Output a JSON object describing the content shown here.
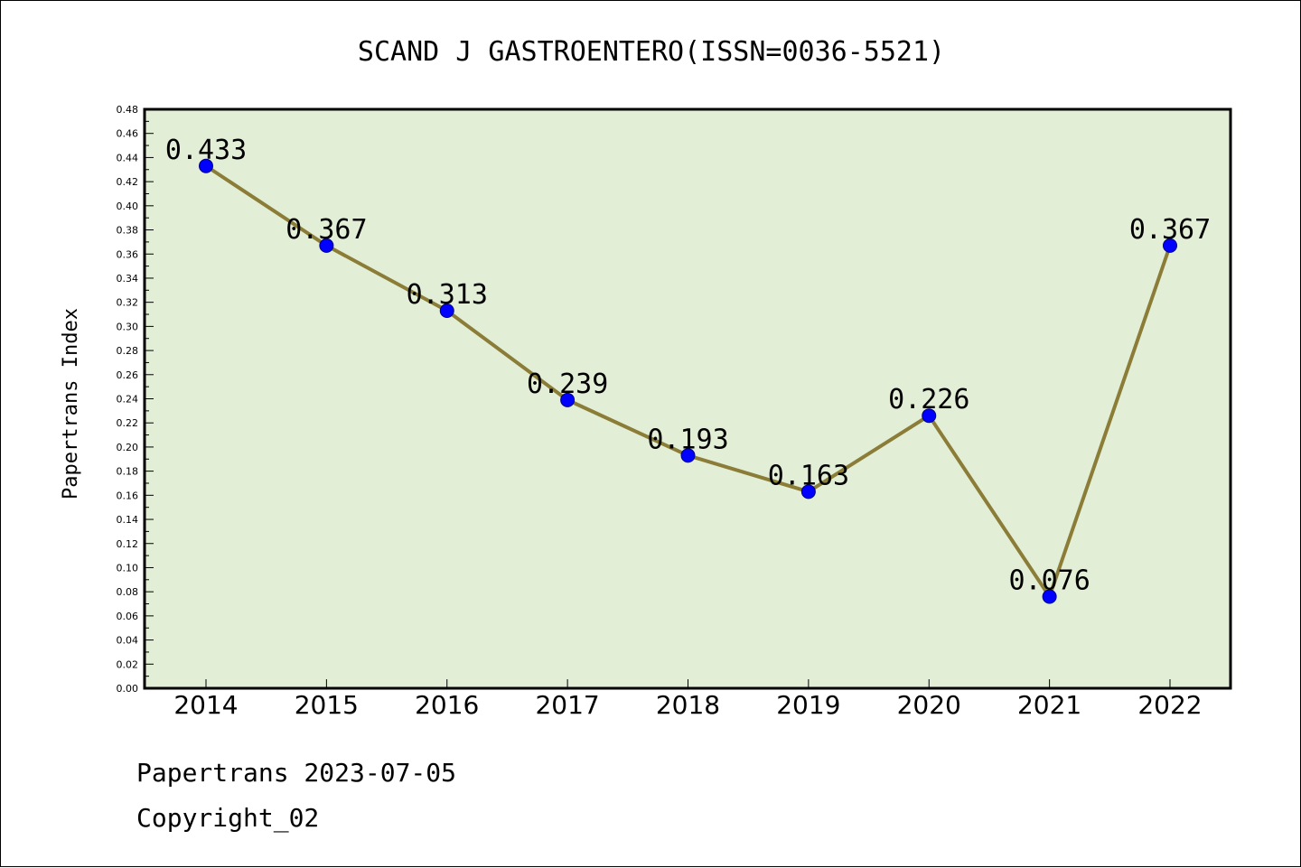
{
  "chart_data": {
    "type": "line",
    "title": "SCAND J GASTROENTERO(ISSN=0036-5521)",
    "ylabel": "Papertrans Index",
    "xlabel": "",
    "categories": [
      "2014",
      "2015",
      "2016",
      "2017",
      "2018",
      "2019",
      "2020",
      "2021",
      "2022"
    ],
    "values": [
      0.433,
      0.367,
      0.313,
      0.239,
      0.193,
      0.163,
      0.226,
      0.076,
      0.367
    ],
    "data_labels": [
      "0.433",
      "0.367",
      "0.313",
      "0.239",
      "0.193",
      "0.163",
      "0.226",
      "0.076",
      "0.367"
    ],
    "ylim": [
      0,
      0.48
    ],
    "yticks": [
      "0.00",
      "0.02",
      "0.04",
      "0.06",
      "0.08",
      "0.10",
      "0.12",
      "0.14",
      "0.16",
      "0.18",
      "0.20",
      "0.22",
      "0.24",
      "0.26",
      "0.28",
      "0.30",
      "0.32",
      "0.34",
      "0.36",
      "0.38",
      "0.40",
      "0.42",
      "0.44",
      "0.46",
      "0.48"
    ],
    "grid": false,
    "colors": {
      "plot_background": "#e2efd6",
      "line": "#8b7d38",
      "marker": "#0000ff",
      "marker_edge": "#000080"
    }
  },
  "footer": {
    "line1": "Papertrans 2023-07-05",
    "line2": "Copyright_02"
  }
}
